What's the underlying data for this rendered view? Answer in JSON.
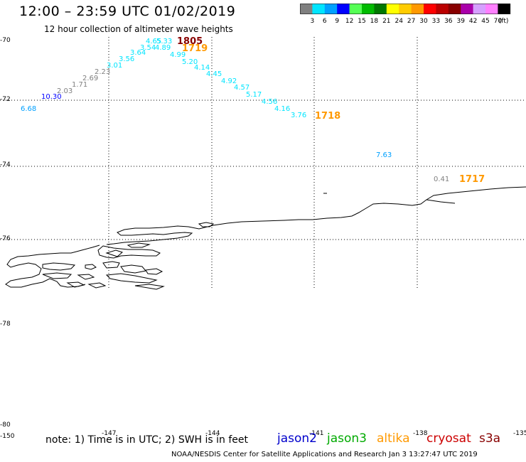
{
  "header": {
    "title": "12:00 – 23:59 UTC 01/02/2019",
    "subtitle": "12 hour collection of altimeter wave heights"
  },
  "scale": {
    "labels": [
      "3",
      "6",
      "9",
      "12",
      "15",
      "18",
      "21",
      "24",
      "27",
      "30",
      "33",
      "36",
      "39",
      "42",
      "45",
      "70"
    ],
    "unit": "(ft)",
    "colors": [
      "#808080",
      "#00e5ff",
      "#00a0ff",
      "#0000ff",
      "#55ff55",
      "#00bb00",
      "#007700",
      "#ffff00",
      "#ffcc00",
      "#ff9900",
      "#ff0000",
      "#bb0000",
      "#880000",
      "#aa00aa",
      "#d6a0ff",
      "#ff80ff",
      "#000000"
    ]
  },
  "axes": {
    "lat_labels": [
      "-70",
      "-72",
      "-74",
      "-76",
      "-78",
      "-80"
    ],
    "lon_labels": [
      "-150",
      "-147",
      "-144",
      "-141",
      "-138",
      "-135"
    ]
  },
  "observations": [
    {
      "v": "6.68",
      "c": "#00a0ff"
    },
    {
      "v": "10.30",
      "c": "#0000ff"
    },
    {
      "v": "2.03",
      "c": "#808080"
    },
    {
      "v": "1.71",
      "c": "#808080"
    },
    {
      "v": "2.69",
      "c": "#808080"
    },
    {
      "v": "2.23",
      "c": "#808080"
    },
    {
      "v": "3.01",
      "c": "#00e5ff"
    },
    {
      "v": "3.56",
      "c": "#00e5ff"
    },
    {
      "v": "3.64",
      "c": "#00e5ff"
    },
    {
      "v": "3.54",
      "c": "#00e5ff"
    },
    {
      "v": "4.89",
      "c": "#00e5ff"
    },
    {
      "v": "4.65",
      "c": "#00e5ff"
    },
    {
      "v": "5.33",
      "c": "#00e5ff"
    },
    {
      "v": "4.99",
      "c": "#00e5ff"
    },
    {
      "v": "5.20",
      "c": "#00e5ff"
    },
    {
      "v": "4.14",
      "c": "#00e5ff"
    },
    {
      "v": "4.45",
      "c": "#00e5ff"
    },
    {
      "v": "4.92",
      "c": "#00e5ff"
    },
    {
      "v": "4.57",
      "c": "#00e5ff"
    },
    {
      "v": "5.17",
      "c": "#00e5ff"
    },
    {
      "v": "4.56",
      "c": "#00e5ff"
    },
    {
      "v": "4.16",
      "c": "#00e5ff"
    },
    {
      "v": "3.76",
      "c": "#00e5ff"
    },
    {
      "v": "7.63",
      "c": "#00a0ff"
    },
    {
      "v": "0.41",
      "c": "#808080"
    }
  ],
  "pass_times": [
    {
      "v": "1805",
      "c": "#880000"
    },
    {
      "v": "1719",
      "c": "#ff9900"
    },
    {
      "v": "1718",
      "c": "#ff9900"
    },
    {
      "v": "1717",
      "c": "#ff9900"
    }
  ],
  "footer": {
    "note": "note: 1) Time is in UTC; 2) SWH is in feet",
    "satellites": [
      {
        "name": "jason2",
        "c": "#0000cc"
      },
      {
        "name": "jason3",
        "c": "#00aa00"
      },
      {
        "name": "altika",
        "c": "#ff9900"
      },
      {
        "name": "cryosat",
        "c": "#cc0000"
      },
      {
        "name": "s3a",
        "c": "#880000"
      }
    ],
    "credit": "NOAA/NESDIS Center for Satellite Applications and Research   Jan  3 13:27:47 UTC 2019"
  }
}
